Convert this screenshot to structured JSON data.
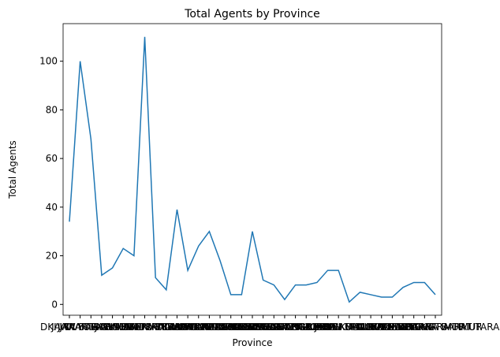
{
  "chart_data": {
    "type": "line",
    "title": "Total Agents by Province",
    "x_label": "Province",
    "y_label": "Total Agents",
    "categories": [
      "DKI JAKARTA",
      "JAWA BARAT",
      "JAWA TENGAH",
      "DI YOGYAKARTA",
      "BANTEN",
      "JAWA TIMUR",
      "BALI",
      "SUMATERA UTARA",
      "SUMATERA BARAT",
      "RIAU",
      "SUMATERA SELATAN",
      "LAMPUNG",
      "KALIMANTAN BARAT",
      "KALIMANTAN TIMUR",
      "KALIMANTAN SELATAN",
      "KALIMANTAN TENGAH",
      "KALIMANTAN UTARA",
      "SULAWESI SELATAN",
      "SULAWESI UTARA",
      "SULAWESI TENGAH",
      "SULAWESI TENGGARA",
      "SULAWESI BARAT",
      "GORONTALO",
      "ACEH",
      "JAMBI",
      "BENGKULU",
      "KEPULAUAN RIAU",
      "KEPULAUAN BANGKA BELITUNG",
      "MALUKU",
      "MALUKU UTARA",
      "PAPUA",
      "PAPUA BARAT",
      "NUSA TENGGARA BARAT",
      "NUSA TENGGARA TIMUR",
      "KALIMANTAN TIMUR UTARA"
    ],
    "series": [
      {
        "name": "Total Agents",
        "color": "#1f77b4",
        "values": [
          34,
          100,
          68,
          12,
          15,
          23,
          20,
          110,
          11,
          6,
          39,
          14,
          24,
          30,
          18,
          4,
          4,
          30,
          10,
          8,
          2,
          8,
          8,
          9,
          14,
          14,
          1,
          5,
          4,
          3,
          3,
          7,
          9,
          9,
          4
        ]
      }
    ],
    "ylim": [
      -4.45,
      115.45
    ],
    "yticks": [
      0,
      20,
      40,
      60,
      80,
      100
    ]
  }
}
